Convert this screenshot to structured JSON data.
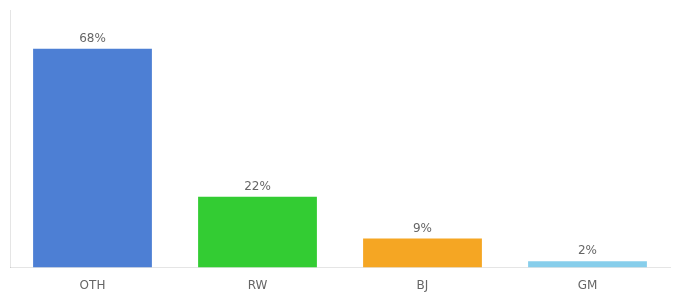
{
  "chart_data": {
    "type": "bar",
    "categories": [
      "OTH",
      "RW",
      "BJ",
      "GM"
    ],
    "values": [
      68,
      22,
      9,
      2
    ],
    "value_labels": [
      "68%",
      "22%",
      "9%",
      "2%"
    ],
    "colors": [
      "#4d7fd4",
      "#33cc33",
      "#f5a623",
      "#87ceeb"
    ],
    "ylim": [
      0,
      80
    ],
    "grid": false,
    "data_labels": true,
    "tick_labels": "x"
  }
}
